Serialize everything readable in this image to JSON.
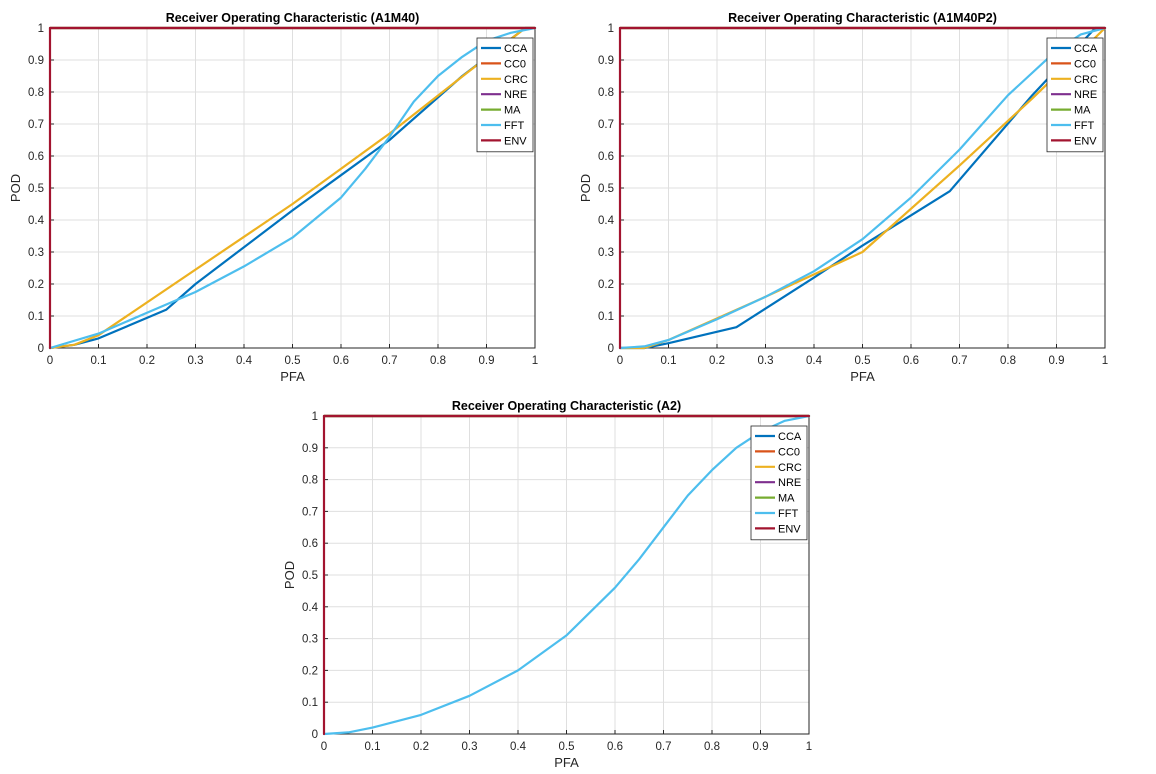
{
  "chart_data": [
    {
      "type": "line",
      "title": "Receiver Operating Characteristic (A1M40)",
      "xlabel": "PFA",
      "ylabel": "POD",
      "xlim": [
        0,
        1
      ],
      "ylim": [
        0,
        1
      ],
      "x_ticks": [
        "0",
        "0.1",
        "0.2",
        "0.3",
        "0.4",
        "0.5",
        "0.6",
        "0.7",
        "0.8",
        "0.9",
        "1"
      ],
      "y_ticks": [
        "0",
        "0.1",
        "0.2",
        "0.3",
        "0.4",
        "0.5",
        "0.6",
        "0.7",
        "0.8",
        "0.9",
        "1"
      ],
      "grid": true,
      "legend": "top-right",
      "series": [
        {
          "name": "CCA",
          "color": "#0072BD",
          "x": [
            0,
            0.05,
            0.1,
            0.24,
            0.3,
            0.5,
            0.6,
            0.7,
            0.85,
            0.98,
            1
          ],
          "y": [
            0,
            0.01,
            0.03,
            0.12,
            0.2,
            0.43,
            0.54,
            0.65,
            0.85,
            1,
            1
          ]
        },
        {
          "name": "CC0",
          "color": "#D95319",
          "x": [
            0,
            1
          ],
          "y": [
            1,
            1
          ]
        },
        {
          "name": "CRC",
          "color": "#EDB120",
          "x": [
            0,
            0.05,
            0.1,
            0.5,
            0.7,
            0.86,
            0.98,
            1
          ],
          "y": [
            0,
            0.01,
            0.04,
            0.45,
            0.67,
            0.86,
            1,
            1
          ]
        },
        {
          "name": "NRE",
          "color": "#7E2F8E",
          "x": [
            0,
            1
          ],
          "y": [
            1,
            1
          ]
        },
        {
          "name": "MA",
          "color": "#77AC30",
          "x": [
            0,
            1
          ],
          "y": [
            1,
            1
          ]
        },
        {
          "name": "FFT",
          "color": "#4DBEEE",
          "x": [
            0,
            0.1,
            0.2,
            0.3,
            0.4,
            0.5,
            0.6,
            0.65,
            0.7,
            0.75,
            0.8,
            0.85,
            0.9,
            0.95,
            1
          ],
          "y": [
            0,
            0.045,
            0.11,
            0.175,
            0.255,
            0.345,
            0.47,
            0.56,
            0.66,
            0.77,
            0.85,
            0.91,
            0.96,
            0.985,
            1
          ]
        },
        {
          "name": "ENV",
          "color": "#A2142F",
          "x": [
            0,
            0,
            1
          ],
          "y": [
            0,
            1,
            1
          ]
        }
      ]
    },
    {
      "type": "line",
      "title": "Receiver Operating Characteristic (A1M40P2)",
      "xlabel": "PFA",
      "ylabel": "POD",
      "xlim": [
        0,
        1
      ],
      "ylim": [
        0,
        1
      ],
      "x_ticks": [
        "0",
        "0.1",
        "0.2",
        "0.3",
        "0.4",
        "0.5",
        "0.6",
        "0.7",
        "0.8",
        "0.9",
        "1"
      ],
      "y_ticks": [
        "0",
        "0.1",
        "0.2",
        "0.3",
        "0.4",
        "0.5",
        "0.6",
        "0.7",
        "0.8",
        "0.9",
        "1"
      ],
      "grid": true,
      "legend": "top-right",
      "series": [
        {
          "name": "CCA",
          "color": "#0072BD",
          "x": [
            0,
            0.05,
            0.1,
            0.24,
            0.4,
            0.5,
            0.68,
            0.85,
            0.98,
            1
          ],
          "y": [
            0,
            0,
            0.015,
            0.065,
            0.22,
            0.32,
            0.49,
            0.79,
            1,
            1
          ]
        },
        {
          "name": "CC0",
          "color": "#D95319",
          "x": [
            0,
            1
          ],
          "y": [
            1,
            1
          ]
        },
        {
          "name": "CRC",
          "color": "#EDB120",
          "x": [
            0,
            0.05,
            0.1,
            0.3,
            0.5,
            0.7,
            0.85,
            0.98,
            1
          ],
          "y": [
            0,
            0,
            0.025,
            0.16,
            0.3,
            0.57,
            0.78,
            0.97,
            1
          ]
        },
        {
          "name": "NRE",
          "color": "#7E2F8E",
          "x": [
            0,
            1
          ],
          "y": [
            1,
            1
          ]
        },
        {
          "name": "MA",
          "color": "#77AC30",
          "x": [
            0,
            1
          ],
          "y": [
            1,
            1
          ]
        },
        {
          "name": "FFT",
          "color": "#4DBEEE",
          "x": [
            0,
            0.05,
            0.1,
            0.2,
            0.3,
            0.4,
            0.5,
            0.6,
            0.7,
            0.8,
            0.9,
            0.95,
            1
          ],
          "y": [
            0,
            0.005,
            0.025,
            0.09,
            0.16,
            0.24,
            0.34,
            0.47,
            0.62,
            0.79,
            0.93,
            0.98,
            1
          ]
        },
        {
          "name": "ENV",
          "color": "#A2142F",
          "x": [
            0,
            0,
            1
          ],
          "y": [
            0,
            1,
            1
          ]
        }
      ]
    },
    {
      "type": "line",
      "title": "Receiver Operating Characteristic (A2)",
      "xlabel": "PFA",
      "ylabel": "POD",
      "xlim": [
        0,
        1
      ],
      "ylim": [
        0,
        1
      ],
      "x_ticks": [
        "0",
        "0.1",
        "0.2",
        "0.3",
        "0.4",
        "0.5",
        "0.6",
        "0.7",
        "0.8",
        "0.9",
        "1"
      ],
      "y_ticks": [
        "0",
        "0.1",
        "0.2",
        "0.3",
        "0.4",
        "0.5",
        "0.6",
        "0.7",
        "0.8",
        "0.9",
        "1"
      ],
      "grid": true,
      "legend": "top-right",
      "series": [
        {
          "name": "CCA",
          "color": "#0072BD",
          "x": [
            0,
            1
          ],
          "y": [
            1,
            1
          ]
        },
        {
          "name": "CC0",
          "color": "#D95319",
          "x": [
            0,
            1
          ],
          "y": [
            1,
            1
          ]
        },
        {
          "name": "CRC",
          "color": "#EDB120",
          "x": [
            0,
            1
          ],
          "y": [
            1,
            1
          ]
        },
        {
          "name": "NRE",
          "color": "#7E2F8E",
          "x": [
            0,
            1
          ],
          "y": [
            1,
            1
          ]
        },
        {
          "name": "MA",
          "color": "#77AC30",
          "x": [
            0,
            1
          ],
          "y": [
            1,
            1
          ]
        },
        {
          "name": "FFT",
          "color": "#4DBEEE",
          "x": [
            0,
            0.05,
            0.1,
            0.2,
            0.3,
            0.4,
            0.5,
            0.6,
            0.65,
            0.7,
            0.75,
            0.8,
            0.85,
            0.9,
            0.95,
            1
          ],
          "y": [
            0,
            0.005,
            0.02,
            0.06,
            0.12,
            0.2,
            0.31,
            0.46,
            0.55,
            0.65,
            0.75,
            0.83,
            0.9,
            0.95,
            0.985,
            1
          ]
        },
        {
          "name": "ENV",
          "color": "#A2142F",
          "x": [
            0,
            0,
            1
          ],
          "y": [
            0,
            1,
            1
          ]
        }
      ]
    }
  ]
}
